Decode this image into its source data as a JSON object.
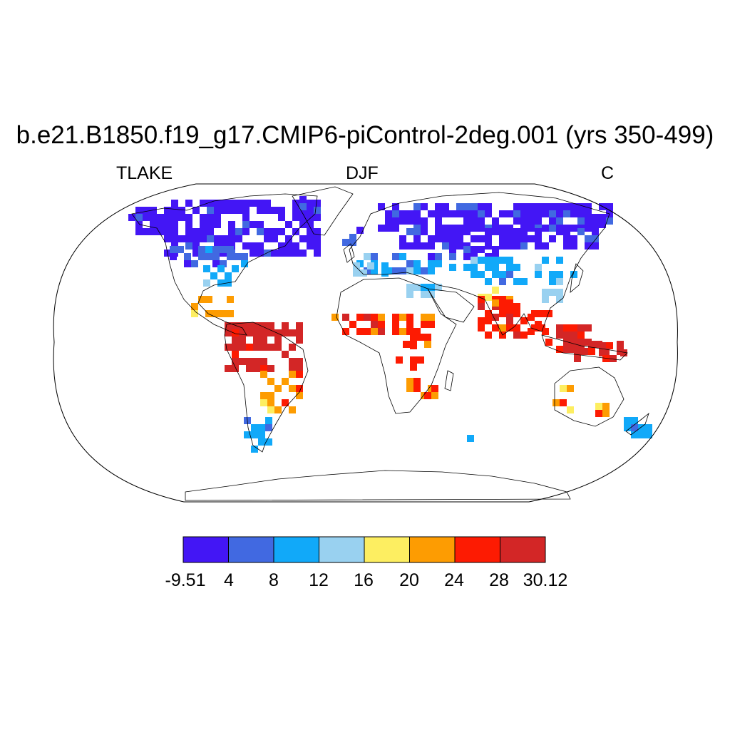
{
  "title": "b.e21.B1850.f19_g17.CMIP6-piControl-2deg.001 (yrs 350-499)",
  "subtitle_left": "TLAKE",
  "subtitle_center": "DJF",
  "subtitle_right": "C",
  "colorbar": {
    "colors": [
      "#4316f5",
      "#4169e1",
      "#11a9f9",
      "#99d1f0",
      "#fdee61",
      "#fd9c02",
      "#fd1b02",
      "#d32626"
    ],
    "labels": [
      "-9.51",
      "4",
      "8",
      "12",
      "16",
      "20",
      "24",
      "28",
      "30.12"
    ]
  },
  "map": {
    "projection": "robinson",
    "field": "lake temperature by grid cell, colored by bin",
    "regions": [
      {
        "name": "north-america-boreal",
        "bin": 0
      },
      {
        "name": "eurasia-boreal",
        "bin": 0
      },
      {
        "name": "north-america-midlat",
        "bin": 1
      },
      {
        "name": "europe",
        "bin": 2
      },
      {
        "name": "mediterranean",
        "bin": 3
      },
      {
        "name": "south-asia",
        "bin": 4
      },
      {
        "name": "mexico",
        "bin": 5
      },
      {
        "name": "sahel",
        "bin": 6
      },
      {
        "name": "amazon",
        "bin": 7
      },
      {
        "name": "southern-brazil",
        "bin": 5
      },
      {
        "name": "southeast-asia",
        "bin": 6
      },
      {
        "name": "indonesia",
        "bin": 7
      },
      {
        "name": "australia-southwest",
        "bin": 5
      },
      {
        "name": "patagonia",
        "bin": 2
      },
      {
        "name": "new-zealand",
        "bin": 2
      }
    ]
  }
}
